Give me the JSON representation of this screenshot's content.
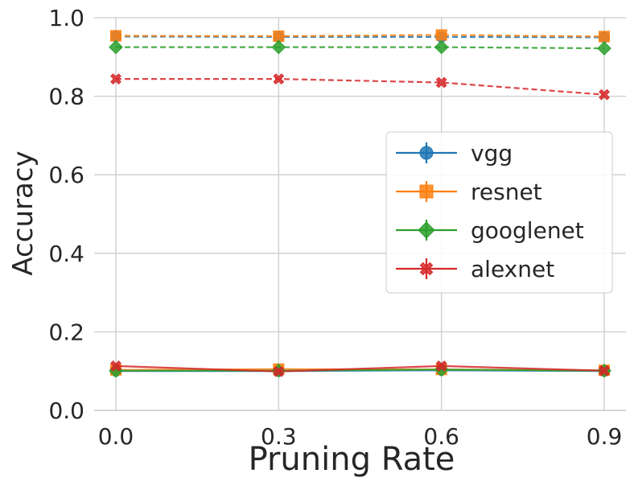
{
  "chart_data": {
    "type": "line",
    "xlabel": "Pruning Rate",
    "ylabel": "Accuracy",
    "x": [
      0.0,
      0.3,
      0.6,
      0.9
    ],
    "xticks": [
      "0.0",
      "0.3",
      "0.6",
      "0.9"
    ],
    "yticks": [
      "0.0",
      "0.2",
      "0.4",
      "0.6",
      "0.8",
      "1.0"
    ],
    "xlim": [
      -0.04,
      0.94
    ],
    "ylim": [
      0.0,
      1.0
    ],
    "grid": true,
    "legend_position": "center-right",
    "series": [
      {
        "name": "vgg",
        "color": "#1f77b4",
        "marker": "circle",
        "solid": [
          0.1,
          0.1,
          0.102,
          0.1
        ],
        "dashed": [
          0.952,
          0.951,
          0.951,
          0.95
        ]
      },
      {
        "name": "resnet",
        "color": "#ff7f0e",
        "marker": "square",
        "solid": [
          0.103,
          0.105,
          0.104,
          0.102
        ],
        "dashed": [
          0.954,
          0.953,
          0.956,
          0.952
        ]
      },
      {
        "name": "googlenet",
        "color": "#2ca02c",
        "marker": "diamond",
        "solid": [
          0.101,
          0.101,
          0.104,
          0.101
        ],
        "dashed": [
          0.925,
          0.925,
          0.925,
          0.922
        ]
      },
      {
        "name": "alexnet",
        "color": "#d62728",
        "marker": "x",
        "solid": [
          0.113,
          0.099,
          0.113,
          0.101
        ],
        "dashed": [
          0.844,
          0.844,
          0.835,
          0.804
        ]
      }
    ]
  }
}
